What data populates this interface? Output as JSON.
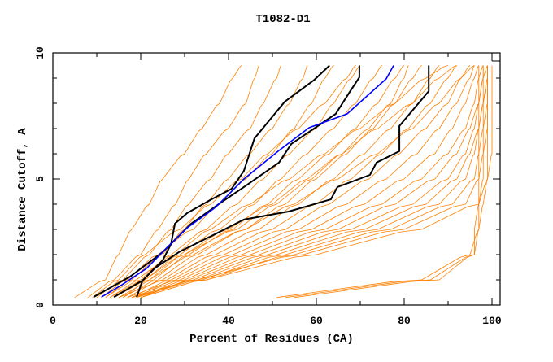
{
  "chart_data": {
    "type": "line",
    "title": "T1082-D1",
    "xlabel": "Percent of Residues (CA)",
    "ylabel": "Distance Cutoff, A",
    "xlim": [
      0,
      101.85
    ],
    "ylim": [
      0,
      10
    ],
    "x_ticks": [
      "0",
      "20",
      "40",
      "60",
      "80",
      "100"
    ],
    "y_ticks": [
      "0",
      "5",
      "10"
    ],
    "grid": false,
    "colors": {
      "models": "#ff8000",
      "highlight": "#000000",
      "reference": "#0000ff"
    },
    "model_y_levels": [
      0.3,
      1,
      2,
      3,
      4,
      5,
      6,
      7,
      8,
      9,
      9.5
    ],
    "model_series_x": [
      [
        5,
        12,
        15,
        18,
        22,
        25,
        30,
        34,
        38,
        41,
        43
      ],
      [
        8,
        14,
        20,
        24,
        28,
        31,
        35,
        40,
        44,
        46,
        47
      ],
      [
        10,
        16,
        22,
        27,
        31,
        36,
        40,
        45,
        48,
        51,
        52
      ],
      [
        12,
        18,
        25,
        30,
        35,
        40,
        45,
        50,
        54,
        57,
        58
      ],
      [
        11,
        17,
        24,
        32,
        38,
        44,
        50,
        55,
        59,
        62,
        64
      ],
      [
        13,
        20,
        27,
        35,
        42,
        48,
        54,
        60,
        64,
        68,
        70
      ],
      [
        14,
        21,
        29,
        38,
        46,
        52,
        58,
        64,
        69,
        73,
        75
      ],
      [
        15,
        23,
        31,
        41,
        49,
        56,
        63,
        69,
        74,
        78,
        80
      ],
      [
        16,
        24,
        33,
        44,
        53,
        60,
        67,
        73,
        78,
        82,
        84
      ],
      [
        17,
        25,
        35,
        47,
        56,
        64,
        71,
        77,
        82,
        86,
        88
      ],
      [
        15,
        26,
        37,
        50,
        60,
        68,
        75,
        81,
        86,
        90,
        92
      ],
      [
        18,
        27,
        39,
        53,
        63,
        72,
        79,
        85,
        90,
        93,
        95
      ],
      [
        19,
        28,
        41,
        56,
        67,
        76,
        83,
        88,
        92,
        95,
        96
      ],
      [
        17,
        29,
        43,
        59,
        71,
        80,
        87,
        91,
        94,
        96,
        97
      ],
      [
        18,
        30,
        45,
        62,
        75,
        84,
        90,
        94,
        96,
        97,
        98
      ],
      [
        19,
        31,
        47,
        65,
        78,
        87,
        92,
        95,
        97,
        98,
        98
      ],
      [
        20,
        32,
        49,
        68,
        82,
        90,
        94,
        96,
        97,
        98,
        99
      ],
      [
        18,
        33,
        51,
        71,
        85,
        92,
        95,
        97,
        98,
        99,
        99
      ],
      [
        19,
        34,
        53,
        74,
        88,
        94,
        96,
        97,
        98,
        99,
        99
      ],
      [
        20,
        35,
        55,
        77,
        91,
        96,
        97,
        98,
        99,
        99,
        99
      ],
      [
        19,
        33,
        57,
        80,
        94,
        97,
        98,
        99,
        99,
        99,
        99
      ],
      [
        20,
        35,
        60,
        84,
        97,
        99,
        99,
        99,
        99,
        99,
        99
      ],
      [
        16,
        22,
        30,
        40,
        50,
        58,
        66,
        74,
        82,
        88,
        92
      ],
      [
        12,
        19,
        28,
        36,
        45,
        54,
        62,
        70,
        78,
        85,
        90
      ],
      [
        14,
        22,
        32,
        44,
        55,
        65,
        74,
        82,
        88,
        93,
        96
      ],
      [
        9,
        15,
        21,
        29,
        36,
        43,
        49,
        56,
        62,
        67,
        69
      ],
      [
        13,
        21,
        30,
        42,
        51,
        59,
        66,
        72,
        77,
        80,
        81
      ],
      [
        51,
        84,
        95,
        97,
        98,
        99,
        100,
        100,
        100,
        100,
        100
      ],
      [
        53,
        86,
        96,
        97,
        97,
        98,
        98,
        98,
        98,
        98,
        98
      ],
      [
        55,
        88,
        96,
        96,
        97,
        97,
        97,
        97,
        97,
        97,
        97
      ]
    ],
    "highlight_series": [
      {
        "name": "black-1",
        "color": "#000000",
        "points": [
          [
            13.9,
            0.32
          ],
          [
            20.4,
            0.97
          ],
          [
            25,
            1.77
          ],
          [
            26.9,
            2.42
          ],
          [
            27.8,
            3.23
          ],
          [
            30.6,
            3.65
          ],
          [
            36.1,
            4.19
          ],
          [
            40.7,
            4.61
          ],
          [
            43.5,
            5.32
          ],
          [
            45.9,
            6.61
          ],
          [
            52.8,
            8.06
          ],
          [
            59.6,
            8.94
          ],
          [
            63,
            9.5
          ]
        ]
      },
      {
        "name": "black-2",
        "color": "#000000",
        "points": [
          [
            9.3,
            0.32
          ],
          [
            17.6,
            1.13
          ],
          [
            25,
            2.1
          ],
          [
            31.5,
            3.23
          ],
          [
            38,
            4.03
          ],
          [
            43.5,
            4.68
          ],
          [
            51.5,
            5.65
          ],
          [
            54.3,
            6.39
          ],
          [
            64.4,
            7.58
          ],
          [
            67.6,
            8.45
          ],
          [
            69.8,
            9.03
          ],
          [
            69.8,
            9.5
          ]
        ]
      },
      {
        "name": "black-3",
        "color": "#000000",
        "points": [
          [
            19.1,
            0.32
          ],
          [
            20.4,
            0.97
          ],
          [
            23.1,
            1.45
          ],
          [
            28.7,
            2.1
          ],
          [
            36.1,
            2.74
          ],
          [
            43.5,
            3.39
          ],
          [
            53.7,
            3.71
          ],
          [
            63.3,
            4.19
          ],
          [
            64.8,
            4.68
          ],
          [
            72.2,
            5.16
          ],
          [
            73.7,
            5.65
          ],
          [
            78.9,
            6.1
          ],
          [
            78.9,
            7.1
          ],
          [
            85.6,
            8.48
          ],
          [
            85.6,
            9.5
          ]
        ]
      },
      {
        "name": "blue",
        "color": "#0000ff",
        "points": [
          [
            11.1,
            0.32
          ],
          [
            15.7,
            0.8
          ],
          [
            21.3,
            1.45
          ],
          [
            25.9,
            2.26
          ],
          [
            30.6,
            3.06
          ],
          [
            37,
            3.87
          ],
          [
            39.8,
            4.35
          ],
          [
            43.5,
            5.0
          ],
          [
            51.5,
            6.13
          ],
          [
            58.3,
            7.03
          ],
          [
            67,
            7.58
          ],
          [
            75.9,
            8.97
          ],
          [
            77.6,
            9.5
          ]
        ]
      }
    ]
  }
}
